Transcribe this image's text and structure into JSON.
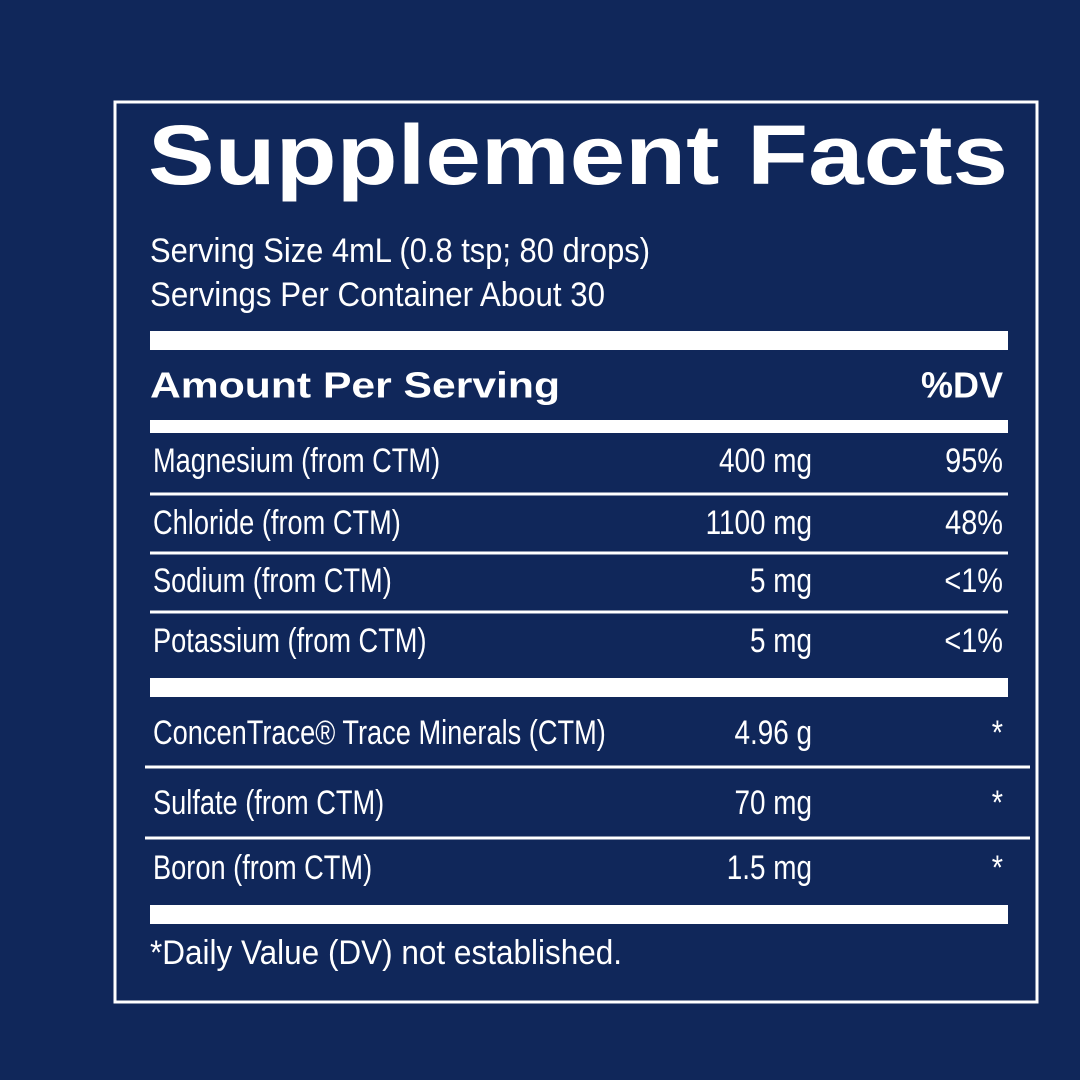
{
  "label": {
    "title": "Supplement Facts",
    "serving_size": "Serving Size 4mL (0.8 tsp; 80 drops)",
    "servings_per_container": "Servings Per Container About 30",
    "header": {
      "amount": "Amount Per Serving",
      "dv": "%DV"
    },
    "groups": [
      {
        "rows": [
          [
            "Magnesium (from CTM)",
            "400 mg",
            "95%"
          ],
          [
            "Chloride (from CTM)",
            "1100 mg",
            "48%"
          ],
          [
            "Sodium (from CTM)",
            "5 mg",
            "<1%"
          ],
          [
            "Potassium (from CTM)",
            "5 mg",
            "<1%"
          ]
        ]
      },
      {
        "rows": [
          [
            "ConcenTrace® Trace Minerals (CTM)",
            "4.96 g",
            "*"
          ],
          [
            "Sulfate (from CTM)",
            "70 mg",
            "*"
          ],
          [
            "Boron (from CTM)",
            "1.5 mg",
            "*"
          ]
        ]
      }
    ],
    "footnote": "*Daily Value (DV) not established."
  }
}
